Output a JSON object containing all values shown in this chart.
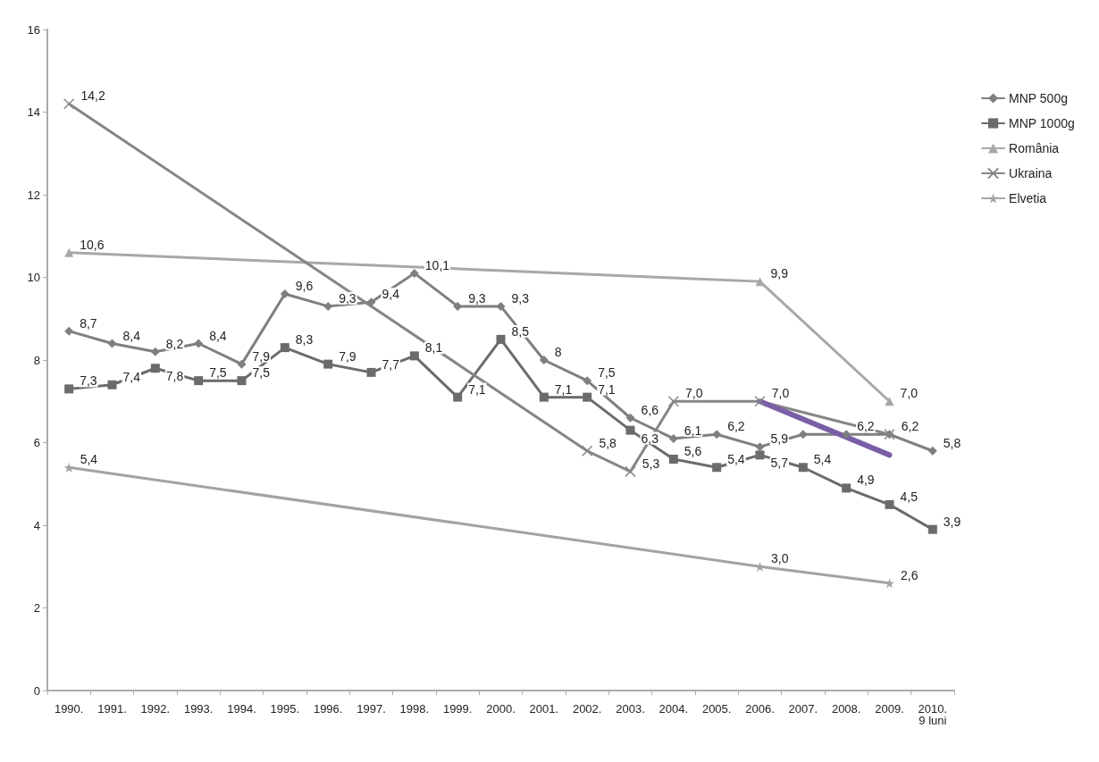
{
  "chart_data": {
    "type": "line",
    "categories": [
      "1990.",
      "1991.",
      "1992.",
      "1993.",
      "1994.",
      "1995.",
      "1996.",
      "1997.",
      "1998.",
      "1999.",
      "2000.",
      "2001.",
      "2002.",
      "2003.",
      "2004.",
      "2005.",
      "2006.",
      "2007.",
      "2008.",
      "2009.",
      "2010. 9 luni"
    ],
    "series": [
      {
        "name": "MNP 500g",
        "color": "#7f7f7f",
        "marker": "diamond",
        "values": [
          8.7,
          8.4,
          8.2,
          8.4,
          7.9,
          9.6,
          9.3,
          9.4,
          10.1,
          9.3,
          9.3,
          8,
          7.5,
          6.6,
          6.1,
          6.2,
          5.9,
          6.2,
          6.2,
          6.2,
          5.8
        ],
        "value_labels": [
          "8,7",
          "8,4",
          "8,2",
          "8,4",
          "7,9",
          "9,6",
          "9,3",
          "9,4",
          "10,1",
          "9,3",
          "9,3",
          "8",
          "7,5",
          "6,6",
          "6,1",
          "6,2",
          "5,9",
          null,
          "6,2",
          null,
          "5,8"
        ]
      },
      {
        "name": "MNP 1000g",
        "color": "#6b6b6b",
        "marker": "square",
        "values": [
          7.3,
          7.4,
          7.8,
          7.5,
          7.5,
          8.3,
          7.9,
          7.7,
          8.1,
          7.1,
          8.5,
          7.1,
          7.1,
          6.3,
          5.6,
          5.4,
          5.7,
          5.4,
          4.9,
          4.5,
          3.9
        ],
        "value_labels": [
          "7,3",
          "7,4",
          "7,8",
          "7,5",
          "7,5",
          "8,3",
          "7,9",
          "7,7",
          "8,1",
          "7,1",
          "8,5",
          "7,1",
          "7,1",
          "6,3",
          "5,6",
          "5,4",
          "5,7",
          "5,4",
          "4,9",
          "4,5",
          "3,9"
        ]
      },
      {
        "name": "România",
        "color": "#a8a8a8",
        "marker": "triangle",
        "values": [
          10.6,
          null,
          null,
          null,
          null,
          null,
          null,
          null,
          null,
          null,
          null,
          null,
          null,
          null,
          null,
          null,
          9.9,
          null,
          null,
          7.0,
          null
        ],
        "value_labels": [
          "10,6",
          null,
          null,
          null,
          null,
          null,
          null,
          null,
          null,
          null,
          null,
          null,
          null,
          null,
          null,
          null,
          "9,9",
          null,
          null,
          "7,0",
          null
        ]
      },
      {
        "name": "Ukraina",
        "color": "#868686",
        "marker": "cross",
        "values": [
          14.2,
          null,
          null,
          null,
          null,
          null,
          null,
          null,
          null,
          null,
          null,
          null,
          5.8,
          5.3,
          7.0,
          null,
          7.0,
          null,
          null,
          6.2,
          null
        ],
        "value_labels": [
          "14,2",
          null,
          null,
          null,
          null,
          null,
          null,
          null,
          null,
          null,
          null,
          null,
          "5,8",
          "5,3",
          "7,0",
          null,
          "7,0",
          null,
          null,
          "6,2",
          null
        ]
      },
      {
        "name": "Elvetia",
        "color": "#a3a3a3",
        "marker": "star",
        "values": [
          5.4,
          null,
          null,
          null,
          null,
          null,
          null,
          null,
          null,
          null,
          null,
          null,
          null,
          null,
          null,
          null,
          3.0,
          null,
          null,
          2.6,
          null
        ],
        "value_labels": [
          "5,4",
          null,
          null,
          null,
          null,
          null,
          null,
          null,
          null,
          null,
          null,
          null,
          null,
          null,
          null,
          null,
          "3,0",
          null,
          null,
          "2,6",
          null
        ]
      },
      {
        "color": "#7b5ea7",
        "marker": "none",
        "values": [
          null,
          null,
          null,
          null,
          null,
          null,
          null,
          null,
          null,
          null,
          null,
          null,
          null,
          null,
          null,
          null,
          7.0,
          null,
          null,
          5.7,
          null
        ]
      }
    ],
    "ylim": [
      0,
      16
    ],
    "yticks": [
      0,
      2,
      4,
      6,
      8,
      10,
      12,
      14,
      16
    ],
    "grid": false,
    "legend": "top right",
    "line_style": "solid"
  }
}
